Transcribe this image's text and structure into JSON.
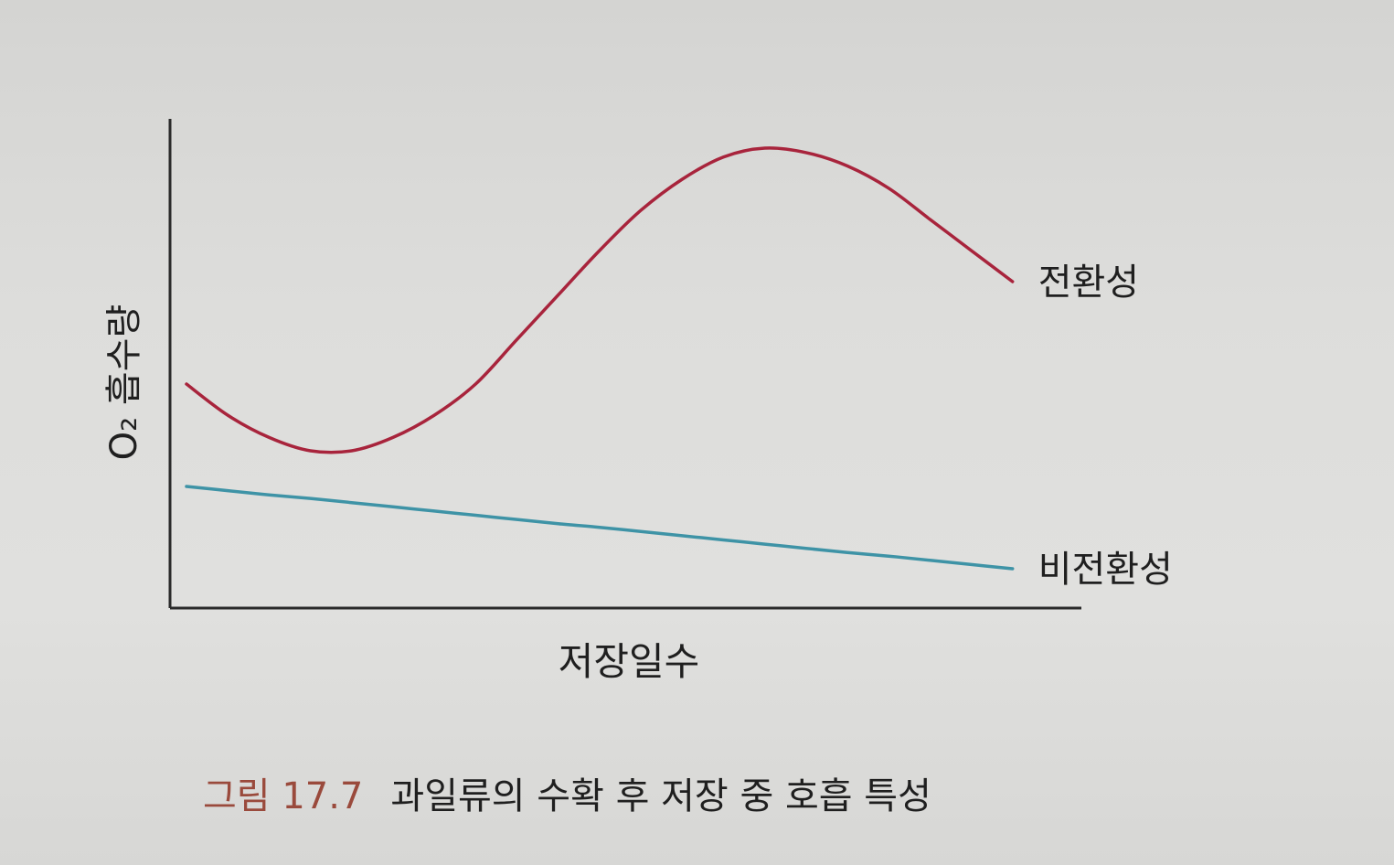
{
  "chart_data": {
    "type": "line",
    "title": "",
    "xlabel": "저장일수",
    "ylabel": "O₂ 흡수량",
    "x": [
      0.0,
      0.05,
      0.1,
      0.15,
      0.2,
      0.25,
      0.3,
      0.35,
      0.4,
      0.45,
      0.5,
      0.55,
      0.6,
      0.65,
      0.7,
      0.75,
      0.8,
      0.85,
      0.9,
      0.95,
      1.0
    ],
    "xlim": [
      0,
      1.08
    ],
    "ylim": [
      0,
      1
    ],
    "grid": false,
    "legend": "labels at right end of each line",
    "series": [
      {
        "name": "전환성",
        "color": "#a8243c",
        "values": [
          0.47,
          0.4,
          0.35,
          0.32,
          0.32,
          0.35,
          0.4,
          0.47,
          0.57,
          0.67,
          0.77,
          0.86,
          0.93,
          0.98,
          1.0,
          0.99,
          0.96,
          0.91,
          0.84,
          0.77,
          0.7
        ]
      },
      {
        "name": "비전환성",
        "color": "#3e93a6",
        "values": [
          0.245,
          0.238,
          0.231,
          0.225,
          0.218,
          0.211,
          0.204,
          0.197,
          0.19,
          0.183,
          0.177,
          0.17,
          0.163,
          0.156,
          0.149,
          0.142,
          0.135,
          0.129,
          0.122,
          0.115,
          0.108
        ]
      }
    ]
  },
  "caption": {
    "number": "그림 17.7",
    "text": "과일류의 수확 후 저장 중 호흡 특성"
  }
}
